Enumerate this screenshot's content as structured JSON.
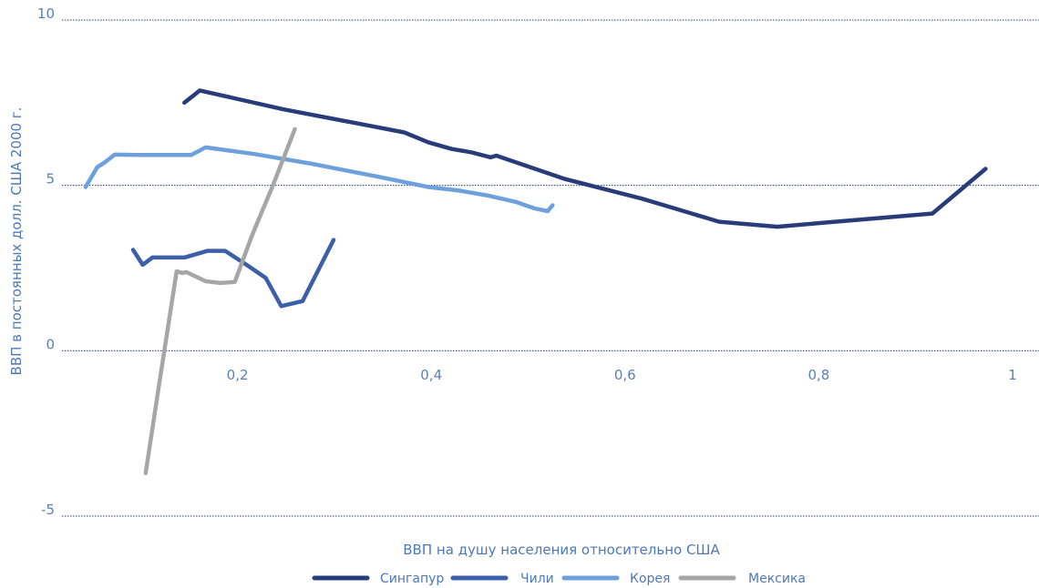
{
  "chart_data": {
    "type": "line",
    "xlabel": "ВВП на душу населения относительно США",
    "ylabel": "ВВП в постоянных долл. США 2000 г.",
    "xlim": [
      0,
      1.0
    ],
    "ylim": [
      -5,
      10
    ],
    "x_ticks": [
      {
        "value": 0.2,
        "label": "0,2"
      },
      {
        "value": 0.4,
        "label": "0,4"
      },
      {
        "value": 0.6,
        "label": "0,6"
      },
      {
        "value": 0.8,
        "label": "0,8"
      },
      {
        "value": 1.0,
        "label": "1"
      }
    ],
    "y_ticks": [
      {
        "value": 10,
        "label": "10"
      },
      {
        "value": 5,
        "label": "5"
      },
      {
        "value": 0,
        "label": "0"
      },
      {
        "value": -5,
        "label": "-5"
      }
    ],
    "grid": true,
    "legend_position": "bottom",
    "series": [
      {
        "name": "Сингапур",
        "color": "#283c7a",
        "points": [
          [
            0.148,
            7.5
          ],
          [
            0.164,
            7.87
          ],
          [
            0.25,
            7.3
          ],
          [
            0.34,
            6.8
          ],
          [
            0.375,
            6.6
          ],
          [
            0.4,
            6.3
          ],
          [
            0.424,
            6.1
          ],
          [
            0.444,
            6.0
          ],
          [
            0.464,
            5.85
          ],
          [
            0.47,
            5.9
          ],
          [
            0.5,
            5.6
          ],
          [
            0.54,
            5.2
          ],
          [
            0.58,
            4.9
          ],
          [
            0.62,
            4.6
          ],
          [
            0.66,
            4.25
          ],
          [
            0.7,
            3.9
          ],
          [
            0.76,
            3.75
          ],
          [
            0.8,
            3.85
          ],
          [
            0.86,
            4.0
          ],
          [
            0.92,
            4.15
          ],
          [
            0.975,
            5.5
          ]
        ]
      },
      {
        "name": "Чили",
        "color": "#3b5fa8",
        "points": [
          [
            0.095,
            3.05
          ],
          [
            0.105,
            2.6
          ],
          [
            0.115,
            2.82
          ],
          [
            0.148,
            2.82
          ],
          [
            0.172,
            3.02
          ],
          [
            0.19,
            3.02
          ],
          [
            0.212,
            2.6
          ],
          [
            0.232,
            2.2
          ],
          [
            0.248,
            1.35
          ],
          [
            0.27,
            1.5
          ],
          [
            0.302,
            3.35
          ]
        ]
      },
      {
        "name": "Корея",
        "color": "#6ea1dc",
        "points": [
          [
            0.046,
            4.95
          ],
          [
            0.058,
            5.55
          ],
          [
            0.066,
            5.7
          ],
          [
            0.076,
            5.93
          ],
          [
            0.1,
            5.92
          ],
          [
            0.14,
            5.92
          ],
          [
            0.155,
            5.92
          ],
          [
            0.17,
            6.15
          ],
          [
            0.22,
            5.95
          ],
          [
            0.28,
            5.65
          ],
          [
            0.35,
            5.25
          ],
          [
            0.4,
            4.95
          ],
          [
            0.43,
            4.85
          ],
          [
            0.46,
            4.7
          ],
          [
            0.49,
            4.5
          ],
          [
            0.5,
            4.4
          ],
          [
            0.51,
            4.3
          ],
          [
            0.523,
            4.22
          ],
          [
            0.528,
            4.4
          ]
        ]
      },
      {
        "name": "Мексика",
        "color": "#a6a6a6",
        "points": [
          [
            0.108,
            -3.7
          ],
          [
            0.122,
            -1.0
          ],
          [
            0.14,
            2.4
          ],
          [
            0.146,
            2.35
          ],
          [
            0.15,
            2.38
          ],
          [
            0.17,
            2.1
          ],
          [
            0.185,
            2.05
          ],
          [
            0.2,
            2.08
          ],
          [
            0.218,
            3.5
          ],
          [
            0.238,
            4.9
          ],
          [
            0.262,
            6.7
          ]
        ]
      }
    ]
  }
}
